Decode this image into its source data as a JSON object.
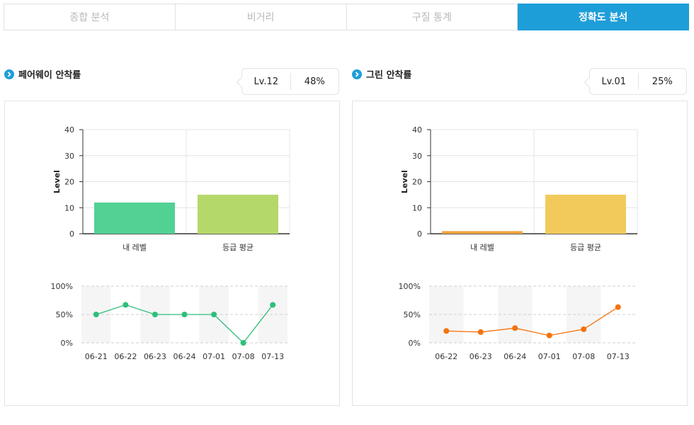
{
  "tabs": [
    {
      "label": "종합 분석",
      "active": false
    },
    {
      "label": "비거리",
      "active": false
    },
    {
      "label": "구질 통계",
      "active": false
    },
    {
      "label": "정확도 분석",
      "active": true
    }
  ],
  "colors": {
    "accent": "#1e9ed9",
    "fairway_my": "#52d194",
    "fairway_avg": "#b5d86a",
    "fairway_line": "#2dbf7a",
    "green_my": "#f2a33a",
    "green_avg": "#f2ca5c",
    "green_line": "#f5720b"
  },
  "sections": [
    {
      "title": "페어웨이 안착률",
      "icon": "chevron-right-icon",
      "badge": {
        "level": "Lv.12",
        "percent": "48%"
      }
    },
    {
      "title": "그린 안착률",
      "icon": "chevron-right-icon",
      "badge": {
        "level": "Lv.01",
        "percent": "25%"
      }
    }
  ],
  "chart_data": [
    {
      "type": "bar",
      "categories": [
        "내 레벨",
        "등급 평균"
      ],
      "values": [
        12,
        15
      ],
      "ylabel": "Level",
      "ylim": [
        0,
        40
      ],
      "yticks": [
        0,
        10,
        20,
        30,
        40
      ],
      "grid": true
    },
    {
      "type": "line",
      "x": [
        "06-21",
        "06-22",
        "06-23",
        "06-24",
        "07-01",
        "07-08",
        "07-13"
      ],
      "values": [
        50,
        67,
        50,
        50,
        50,
        0,
        67
      ],
      "yticks": [
        "100%",
        "50%",
        "0%"
      ],
      "ylim": [
        0,
        100
      ]
    },
    {
      "type": "bar",
      "categories": [
        "내 레벨",
        "등급 평균"
      ],
      "values": [
        1,
        15
      ],
      "ylabel": "Level",
      "ylim": [
        0,
        40
      ],
      "yticks": [
        0,
        10,
        20,
        30,
        40
      ],
      "grid": true
    },
    {
      "type": "line",
      "x": [
        "06-22",
        "06-23",
        "06-24",
        "07-01",
        "07-08",
        "07-13"
      ],
      "values": [
        21,
        19,
        26,
        13,
        24,
        63
      ],
      "yticks": [
        "100%",
        "50%",
        "0%"
      ],
      "ylim": [
        0,
        100
      ]
    }
  ]
}
